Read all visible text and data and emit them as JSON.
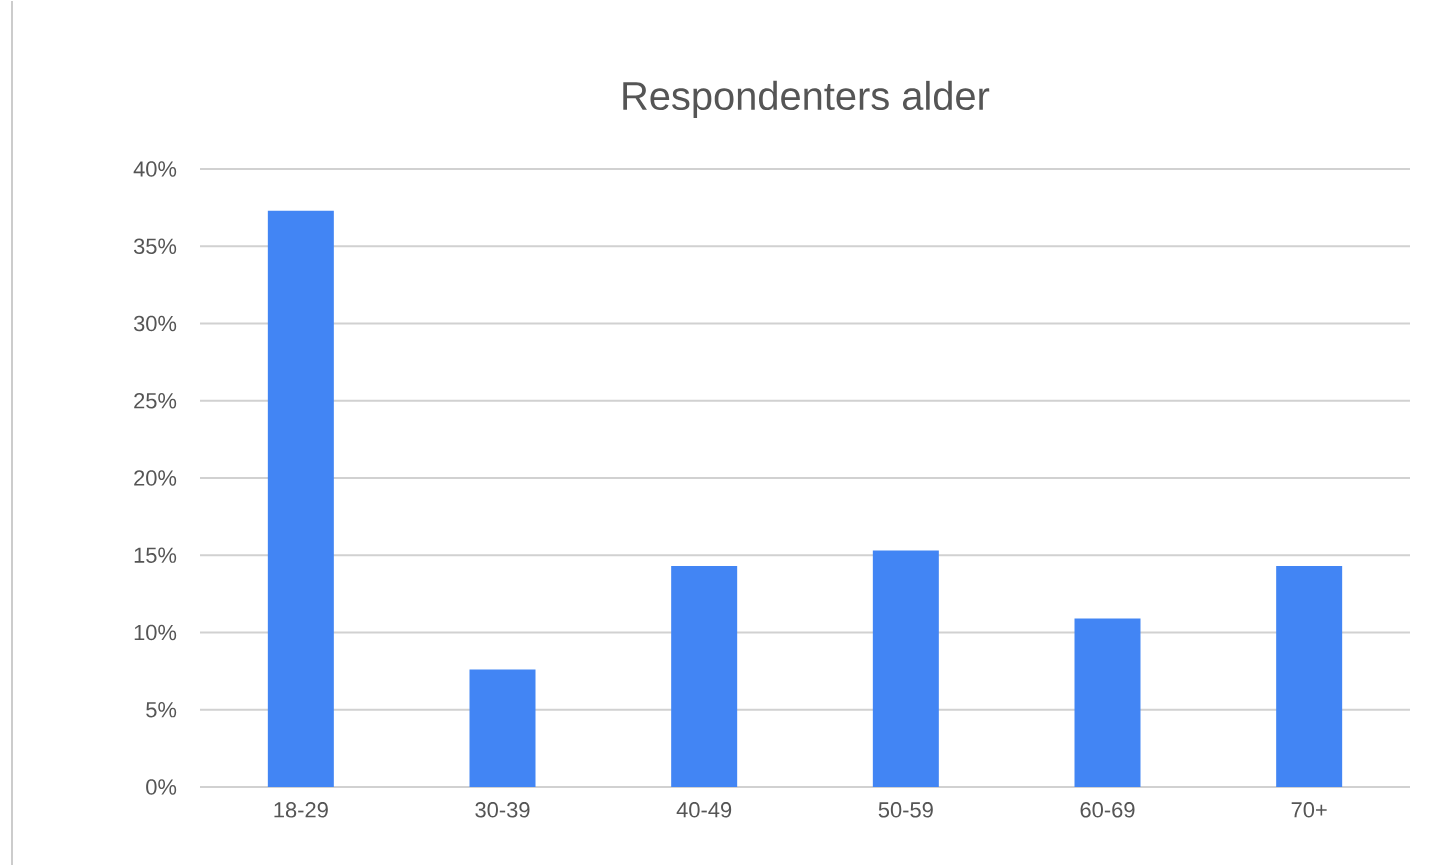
{
  "chart_data": {
    "type": "bar",
    "title": "Respondenters alder",
    "categories": [
      "18-29",
      "30-39",
      "40-49",
      "50-59",
      "60-69",
      "70+"
    ],
    "values": [
      37.3,
      7.6,
      14.3,
      15.3,
      10.9,
      14.3
    ],
    "color": "#4285f4",
    "ylim": [
      0,
      40
    ],
    "yticks": [
      {
        "value": 0,
        "label": "0%"
      },
      {
        "value": 5,
        "label": "5%"
      },
      {
        "value": 10,
        "label": "10%"
      },
      {
        "value": 15,
        "label": "15%"
      },
      {
        "value": 20,
        "label": "20%"
      },
      {
        "value": 25,
        "label": "25%"
      },
      {
        "value": 30,
        "label": "30%"
      },
      {
        "value": 35,
        "label": "35%"
      },
      {
        "value": 40,
        "label": "40%"
      }
    ],
    "grid": "y"
  }
}
